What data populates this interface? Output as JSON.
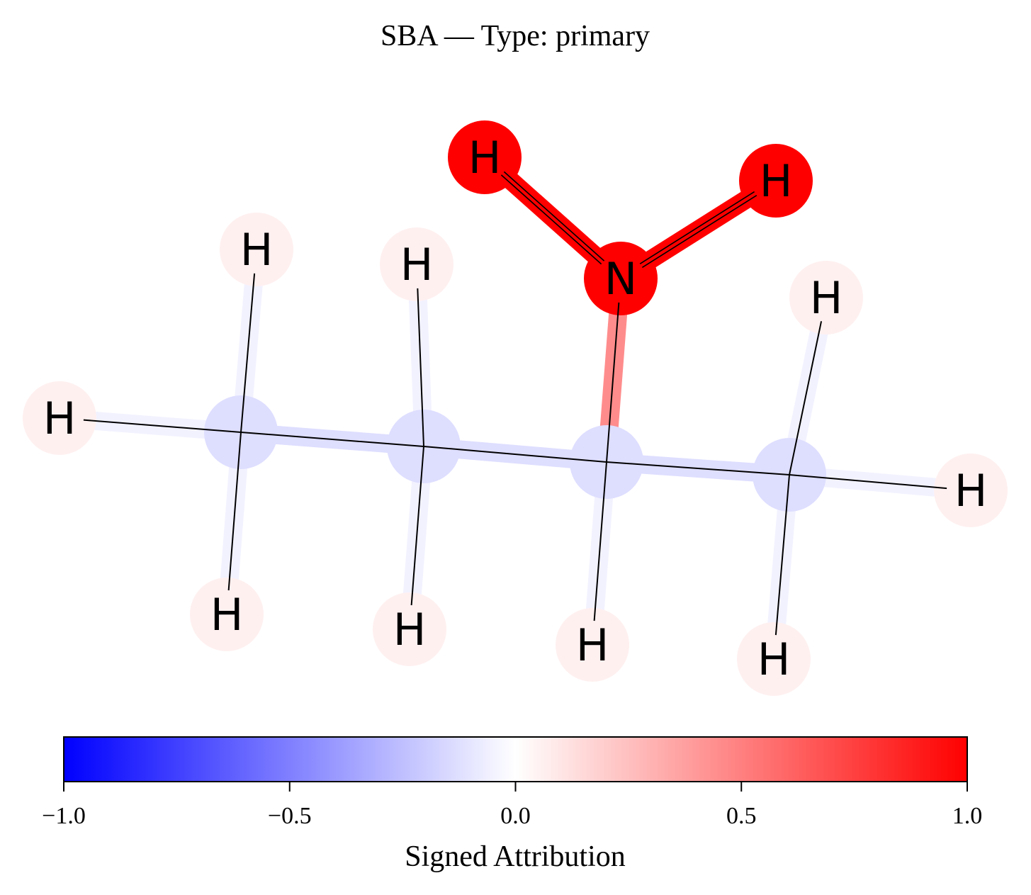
{
  "title": "SBA — Type: primary",
  "colorbar": {
    "label": "Signed Attribution",
    "min": -1.0,
    "max": 1.0,
    "ticks": [
      {
        "value": -1.0,
        "label": "−1.0"
      },
      {
        "value": -0.5,
        "label": "−0.5"
      },
      {
        "value": 0.0,
        "label": "0.0"
      },
      {
        "value": 0.5,
        "label": "0.5"
      },
      {
        "value": 1.0,
        "label": "1.0"
      }
    ],
    "colors": {
      "low": "#0000ff",
      "mid": "#ffffff",
      "high": "#ff0000"
    }
  },
  "molecule": {
    "atoms": [
      {
        "id": "C1",
        "symbol": "",
        "attribution": -0.13
      },
      {
        "id": "C2",
        "symbol": "",
        "attribution": -0.13
      },
      {
        "id": "C3",
        "symbol": "",
        "attribution": -0.13
      },
      {
        "id": "C4",
        "symbol": "",
        "attribution": -0.13
      },
      {
        "id": "N",
        "symbol": "N",
        "attribution": 1.0
      },
      {
        "id": "HN1",
        "symbol": "H",
        "attribution": 1.0
      },
      {
        "id": "HN2",
        "symbol": "H",
        "attribution": 1.0
      },
      {
        "id": "H1",
        "symbol": "H",
        "attribution": 0.06
      },
      {
        "id": "H2",
        "symbol": "H",
        "attribution": 0.06
      },
      {
        "id": "H3",
        "symbol": "H",
        "attribution": 0.06
      },
      {
        "id": "H4",
        "symbol": "H",
        "attribution": 0.06
      },
      {
        "id": "H5",
        "symbol": "H",
        "attribution": 0.06
      },
      {
        "id": "H6",
        "symbol": "H",
        "attribution": 0.06
      },
      {
        "id": "H7",
        "symbol": "H",
        "attribution": 0.06
      },
      {
        "id": "H8",
        "symbol": "H",
        "attribution": 0.06
      },
      {
        "id": "H9",
        "symbol": "H",
        "attribution": 0.06
      }
    ],
    "bonds": [
      {
        "a": "C1",
        "b": "C2",
        "attribution": -0.13
      },
      {
        "a": "C2",
        "b": "C3",
        "attribution": -0.13
      },
      {
        "a": "C3",
        "b": "C4",
        "attribution": -0.13
      },
      {
        "a": "C3",
        "b": "N",
        "attribution": 0.45
      },
      {
        "a": "N",
        "b": "HN1",
        "attribution": 1.0
      },
      {
        "a": "N",
        "b": "HN2",
        "attribution": 1.0
      },
      {
        "a": "C1",
        "b": "H1",
        "attribution": -0.05
      },
      {
        "a": "C1",
        "b": "H2",
        "attribution": -0.05
      },
      {
        "a": "C1",
        "b": "H3",
        "attribution": -0.05
      },
      {
        "a": "C2",
        "b": "H4",
        "attribution": -0.05
      },
      {
        "a": "C2",
        "b": "H5",
        "attribution": -0.05
      },
      {
        "a": "C3",
        "b": "H6",
        "attribution": -0.05
      },
      {
        "a": "C4",
        "b": "H7",
        "attribution": -0.05
      },
      {
        "a": "C4",
        "b": "H8",
        "attribution": -0.05
      },
      {
        "a": "C4",
        "b": "H9",
        "attribution": -0.05
      }
    ]
  }
}
